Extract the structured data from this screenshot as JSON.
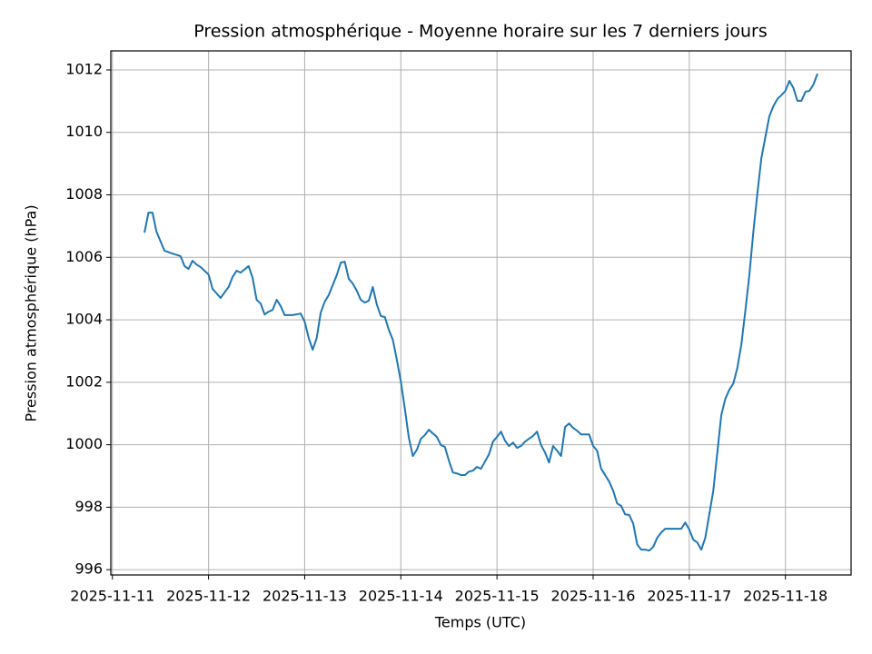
{
  "chart_data": {
    "type": "line",
    "title": "Pression atmosphérique - Moyenne horaire sur les 7 derniers jours",
    "xlabel": "Temps (UTC)",
    "ylabel": "Pression atmosphérique (hPa)",
    "grid": true,
    "xlim": [
      "2025-11-10 23:36",
      "2025-11-18 16:24"
    ],
    "xticks": [
      "2025-11-11",
      "2025-11-12",
      "2025-11-13",
      "2025-11-14",
      "2025-11-15",
      "2025-11-16",
      "2025-11-17",
      "2025-11-18"
    ],
    "ylim": [
      995.83,
      1012.61
    ],
    "yticks": [
      996,
      998,
      1000,
      1002,
      1004,
      1006,
      1008,
      1010,
      1012
    ],
    "x": [
      "2025-11-11 08:00",
      "2025-11-11 09:00",
      "2025-11-11 10:00",
      "2025-11-11 11:00",
      "2025-11-11 13:00",
      "2025-11-11 15:00",
      "2025-11-11 17:00",
      "2025-11-11 18:00",
      "2025-11-11 19:00",
      "2025-11-11 20:00",
      "2025-11-11 21:00",
      "2025-11-11 22:00",
      "2025-11-12 00:00",
      "2025-11-12 01:00",
      "2025-11-12 03:00",
      "2025-11-12 05:00",
      "2025-11-12 06:00",
      "2025-11-12 07:00",
      "2025-11-12 08:00",
      "2025-11-12 10:00",
      "2025-11-12 11:00",
      "2025-11-12 12:00",
      "2025-11-12 13:00",
      "2025-11-12 14:00",
      "2025-11-12 15:00",
      "2025-11-12 16:00",
      "2025-11-12 17:00",
      "2025-11-12 18:00",
      "2025-11-12 19:00",
      "2025-11-12 21:00",
      "2025-11-12 23:00",
      "2025-11-13 00:00",
      "2025-11-13 01:00",
      "2025-11-13 02:00",
      "2025-11-13 03:00",
      "2025-11-13 04:00",
      "2025-11-13 05:00",
      "2025-11-13 06:00",
      "2025-11-13 07:00",
      "2025-11-13 08:00",
      "2025-11-13 09:00",
      "2025-11-13 10:00",
      "2025-11-13 11:00",
      "2025-11-13 12:00",
      "2025-11-13 13:00",
      "2025-11-13 14:00",
      "2025-11-13 15:00",
      "2025-11-13 16:00",
      "2025-11-13 17:00",
      "2025-11-13 18:00",
      "2025-11-13 19:00",
      "2025-11-13 20:00",
      "2025-11-13 21:00",
      "2025-11-13 22:00",
      "2025-11-13 23:00",
      "2025-11-14 00:00",
      "2025-11-14 01:00",
      "2025-11-14 02:00",
      "2025-11-14 03:00",
      "2025-11-14 04:00",
      "2025-11-14 05:00",
      "2025-11-14 06:00",
      "2025-11-14 07:00",
      "2025-11-14 08:00",
      "2025-11-14 09:00",
      "2025-11-14 10:00",
      "2025-11-14 11:00",
      "2025-11-14 12:00",
      "2025-11-14 13:00",
      "2025-11-14 14:00",
      "2025-11-14 15:00",
      "2025-11-14 16:00",
      "2025-11-14 17:00",
      "2025-11-14 18:00",
      "2025-11-14 19:00",
      "2025-11-14 20:00",
      "2025-11-14 21:00",
      "2025-11-14 22:00",
      "2025-11-14 23:00",
      "2025-11-15 00:00",
      "2025-11-15 01:00",
      "2025-11-15 02:00",
      "2025-11-15 03:00",
      "2025-11-15 04:00",
      "2025-11-15 05:00",
      "2025-11-15 06:00",
      "2025-11-15 07:00",
      "2025-11-15 08:00",
      "2025-11-15 09:00",
      "2025-11-15 10:00",
      "2025-11-15 11:00",
      "2025-11-15 12:00",
      "2025-11-15 13:00",
      "2025-11-15 14:00",
      "2025-11-15 15:00",
      "2025-11-15 16:00",
      "2025-11-15 17:00",
      "2025-11-15 18:00",
      "2025-11-15 19:00",
      "2025-11-15 20:00",
      "2025-11-15 21:00",
      "2025-11-15 22:00",
      "2025-11-15 23:00",
      "2025-11-16 00:00",
      "2025-11-16 01:00",
      "2025-11-16 02:00",
      "2025-11-16 03:00",
      "2025-11-16 04:00",
      "2025-11-16 05:00",
      "2025-11-16 06:00",
      "2025-11-16 07:00",
      "2025-11-16 08:00",
      "2025-11-16 09:00",
      "2025-11-16 10:00",
      "2025-11-16 11:00",
      "2025-11-16 12:00",
      "2025-11-16 13:00",
      "2025-11-16 14:00",
      "2025-11-16 15:00",
      "2025-11-16 16:00",
      "2025-11-16 17:00",
      "2025-11-16 18:00",
      "2025-11-16 19:00",
      "2025-11-16 20:00",
      "2025-11-16 21:00",
      "2025-11-16 22:00",
      "2025-11-16 23:00",
      "2025-11-17 00:00",
      "2025-11-17 01:00",
      "2025-11-17 02:00",
      "2025-11-17 03:00",
      "2025-11-17 04:00",
      "2025-11-17 05:00",
      "2025-11-17 06:00",
      "2025-11-17 07:00",
      "2025-11-17 08:00",
      "2025-11-17 09:00",
      "2025-11-17 10:00",
      "2025-11-17 11:00",
      "2025-11-17 12:00",
      "2025-11-17 13:00",
      "2025-11-17 14:00",
      "2025-11-17 15:00",
      "2025-11-17 16:00",
      "2025-11-17 17:00",
      "2025-11-17 18:00",
      "2025-11-17 19:00",
      "2025-11-17 20:00",
      "2025-11-17 21:00",
      "2025-11-17 22:00",
      "2025-11-17 23:00",
      "2025-11-18 00:00",
      "2025-11-18 01:00",
      "2025-11-18 02:00",
      "2025-11-18 03:00",
      "2025-11-18 04:00",
      "2025-11-18 05:00",
      "2025-11-18 06:00",
      "2025-11-18 07:00",
      "2025-11-18 08:00"
    ],
    "series": [
      {
        "name": "Pression",
        "color": "#1f77b4",
        "values": [
          1006.79,
          1007.43,
          1007.43,
          1006.82,
          1006.21,
          1006.12,
          1006.04,
          1005.72,
          1005.63,
          1005.89,
          1005.77,
          1005.69,
          1005.45,
          1004.99,
          1004.7,
          1005.05,
          1005.37,
          1005.57,
          1005.51,
          1005.72,
          1005.34,
          1004.64,
          1004.52,
          1004.17,
          1004.26,
          1004.32,
          1004.64,
          1004.44,
          1004.15,
          1004.15,
          1004.2,
          1003.94,
          1003.42,
          1003.04,
          1003.42,
          1004.23,
          1004.58,
          1004.79,
          1005.11,
          1005.43,
          1005.83,
          1005.86,
          1005.31,
          1005.16,
          1004.93,
          1004.64,
          1004.55,
          1004.61,
          1005.05,
          1004.49,
          1004.12,
          1004.09,
          1003.68,
          1003.36,
          1002.72,
          1002.02,
          1001.15,
          1000.22,
          999.64,
          999.84,
          1000.19,
          1000.31,
          1000.48,
          1000.36,
          1000.25,
          999.99,
          999.93,
          999.49,
          999.11,
          999.08,
          999.03,
          999.03,
          999.14,
          999.17,
          999.29,
          999.23,
          999.46,
          999.69,
          1000.1,
          1000.25,
          1000.42,
          1000.13,
          999.96,
          1000.07,
          999.9,
          999.96,
          1000.1,
          1000.19,
          1000.28,
          1000.42,
          999.99,
          999.75,
          999.43,
          999.96,
          999.81,
          999.64,
          1000.57,
          1000.68,
          1000.54,
          1000.45,
          1000.33,
          1000.33,
          1000.33,
          999.96,
          999.81,
          999.23,
          999.03,
          998.82,
          998.53,
          998.12,
          998.04,
          997.77,
          997.75,
          997.48,
          996.81,
          996.64,
          996.64,
          996.61,
          996.73,
          997.02,
          997.19,
          997.31,
          997.31,
          997.31,
          997.31,
          997.31,
          997.51,
          997.28,
          996.96,
          996.87,
          996.64,
          997.02,
          997.77,
          998.53,
          999.75,
          1000.95,
          1001.47,
          1001.76,
          1001.96,
          1002.46,
          1003.21,
          1004.29,
          1005.43,
          1006.82,
          1008.04,
          1009.18,
          1009.85,
          1010.52,
          1010.84,
          1011.07,
          1011.19,
          1011.33,
          1011.65,
          1011.42,
          1011.01,
          1011.01,
          1011.3,
          1011.33,
          1011.53,
          1011.88
        ]
      }
    ]
  }
}
